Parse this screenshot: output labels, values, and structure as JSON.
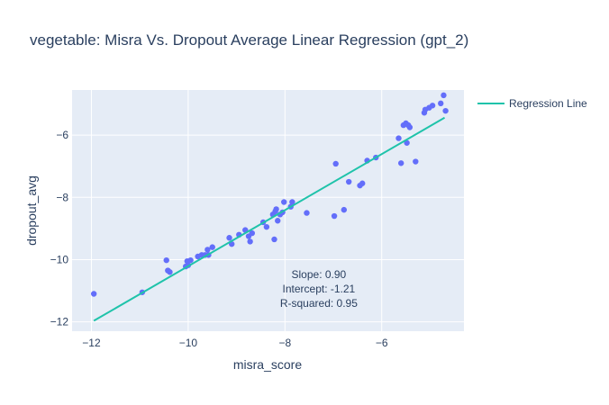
{
  "chart_data": {
    "type": "scatter",
    "title": "vegetable: Misra Vs. Dropout Average Linear Regression (gpt_2)",
    "xlabel": "misra_score",
    "ylabel": "dropout_avg",
    "xlim": [
      -12.4,
      -4.3
    ],
    "ylim": [
      -12.3,
      -4.55
    ],
    "x_ticks": [
      -12,
      -10,
      -8,
      -6
    ],
    "y_ticks": [
      -12,
      -10,
      -8,
      -6
    ],
    "x_tick_labels": [
      "−12",
      "−10",
      "−8",
      "−6"
    ],
    "y_tick_labels": [
      "−12",
      "−10",
      "−8",
      "−6"
    ],
    "grid": true,
    "legend_position": "top-right",
    "series": [
      {
        "type": "scatter",
        "color": "#636efa",
        "points": [
          [
            -11.95,
            -11.1
          ],
          [
            -10.95,
            -11.05
          ],
          [
            -10.45,
            -10.02
          ],
          [
            -10.42,
            -10.35
          ],
          [
            -10.38,
            -10.4
          ],
          [
            -10.05,
            -10.22
          ],
          [
            -10.02,
            -10.05
          ],
          [
            -10.0,
            -10.18
          ],
          [
            -9.95,
            -10.02
          ],
          [
            -9.8,
            -9.9
          ],
          [
            -9.72,
            -9.85
          ],
          [
            -9.65,
            -9.85
          ],
          [
            -9.6,
            -9.68
          ],
          [
            -9.58,
            -9.85
          ],
          [
            -9.5,
            -9.6
          ],
          [
            -9.15,
            -9.3
          ],
          [
            -9.1,
            -9.5
          ],
          [
            -8.95,
            -9.2
          ],
          [
            -8.82,
            -9.05
          ],
          [
            -8.75,
            -9.25
          ],
          [
            -8.72,
            -9.42
          ],
          [
            -8.68,
            -9.15
          ],
          [
            -8.45,
            -8.8
          ],
          [
            -8.38,
            -8.95
          ],
          [
            -8.25,
            -8.55
          ],
          [
            -8.22,
            -9.35
          ],
          [
            -8.2,
            -8.45
          ],
          [
            -8.18,
            -8.38
          ],
          [
            -8.15,
            -8.75
          ],
          [
            -8.1,
            -8.55
          ],
          [
            -8.05,
            -8.48
          ],
          [
            -8.02,
            -8.15
          ],
          [
            -7.88,
            -8.3
          ],
          [
            -7.85,
            -8.15
          ],
          [
            -7.55,
            -8.5
          ],
          [
            -6.98,
            -8.6
          ],
          [
            -6.95,
            -6.92
          ],
          [
            -6.78,
            -8.4
          ],
          [
            -6.68,
            -7.5
          ],
          [
            -6.45,
            -7.62
          ],
          [
            -6.4,
            -7.55
          ],
          [
            -6.3,
            -6.82
          ],
          [
            -6.12,
            -6.72
          ],
          [
            -5.65,
            -6.1
          ],
          [
            -5.6,
            -6.9
          ],
          [
            -5.55,
            -5.68
          ],
          [
            -5.5,
            -5.62
          ],
          [
            -5.48,
            -6.25
          ],
          [
            -5.45,
            -5.68
          ],
          [
            -5.42,
            -5.75
          ],
          [
            -5.3,
            -6.85
          ],
          [
            -5.12,
            -5.28
          ],
          [
            -5.1,
            -5.18
          ],
          [
            -5.02,
            -5.12
          ],
          [
            -4.95,
            -5.05
          ],
          [
            -4.78,
            -4.98
          ],
          [
            -4.72,
            -4.72
          ],
          [
            -4.68,
            -5.22
          ]
        ]
      },
      {
        "type": "line",
        "name": "Regression Line",
        "color": "#1fc3aa",
        "x": [
          -11.95,
          -4.7
        ],
        "y": [
          -11.965,
          -5.44
        ]
      }
    ],
    "annotation": {
      "lines": [
        "Slope: 0.90",
        "Intercept: -1.21",
        "R-squared: 0.95"
      ],
      "x": -7.3,
      "y": -10.6
    },
    "colors": {
      "plot_bg": "#e5ecf6",
      "grid": "#ffffff",
      "text": "#2a3f5f",
      "markers": "#636efa",
      "line": "#1fc3aa"
    }
  }
}
